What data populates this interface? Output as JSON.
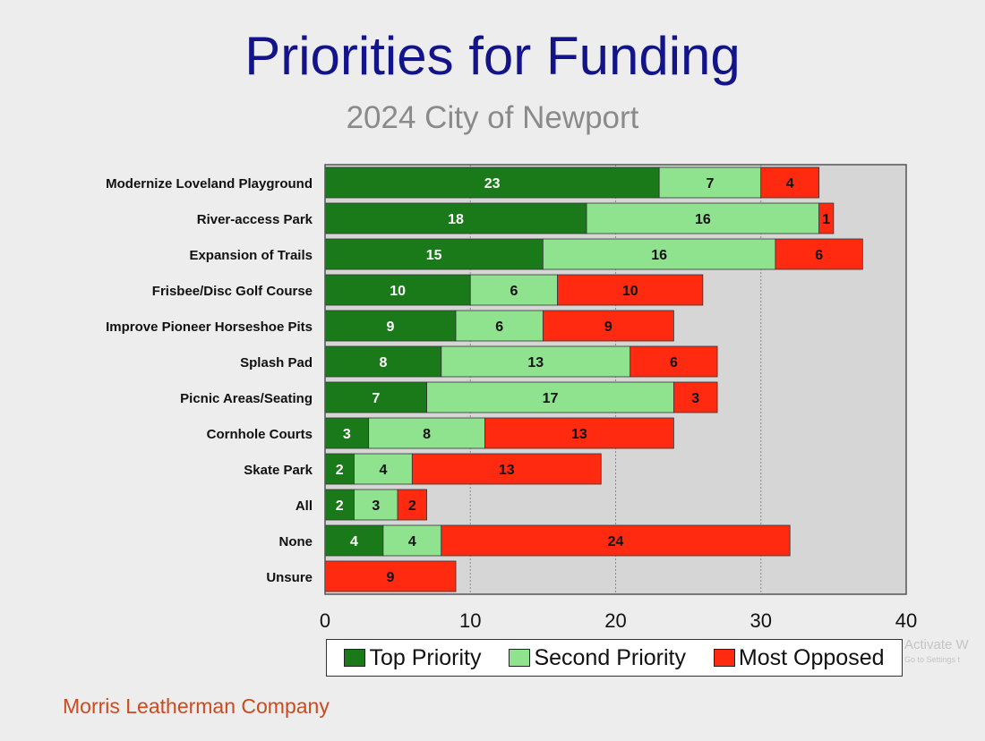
{
  "chart_data": {
    "type": "bar",
    "orientation": "horizontal",
    "stacked": true,
    "title": "Priorities for Funding",
    "subtitle": "2024 City of Newport",
    "categories": [
      "Modernize Loveland Playground",
      "River-access Park",
      "Expansion of Trails",
      "Frisbee/Disc Golf Course",
      "Improve Pioneer Horseshoe Pits",
      "Splash Pad",
      "Picnic Areas/Seating",
      "Cornhole Courts",
      "Skate Park",
      "All",
      "None",
      "Unsure"
    ],
    "series": [
      {
        "name": "Top Priority",
        "color": "#1a7a1a",
        "label_color": "#ffffff",
        "values": [
          23,
          18,
          15,
          10,
          9,
          8,
          7,
          3,
          2,
          2,
          4,
          0
        ]
      },
      {
        "name": "Second Priority",
        "color": "#8fe38f",
        "label_color": "#111111",
        "values": [
          7,
          16,
          16,
          6,
          6,
          13,
          17,
          8,
          4,
          3,
          4,
          0
        ]
      },
      {
        "name": "Most Opposed",
        "color": "#ff2a10",
        "label_color": "#111111",
        "values": [
          4,
          1,
          6,
          10,
          9,
          6,
          3,
          13,
          13,
          2,
          24,
          9
        ]
      }
    ],
    "xlim": [
      0,
      40
    ],
    "xticks": [
      "0",
      "10",
      "20",
      "30",
      "40"
    ],
    "grid": true,
    "legend_position": "bottom"
  },
  "footer": "Morris Leatherman Company",
  "watermark": {
    "line1": "Activate W",
    "line2": "Go to Settings t"
  }
}
